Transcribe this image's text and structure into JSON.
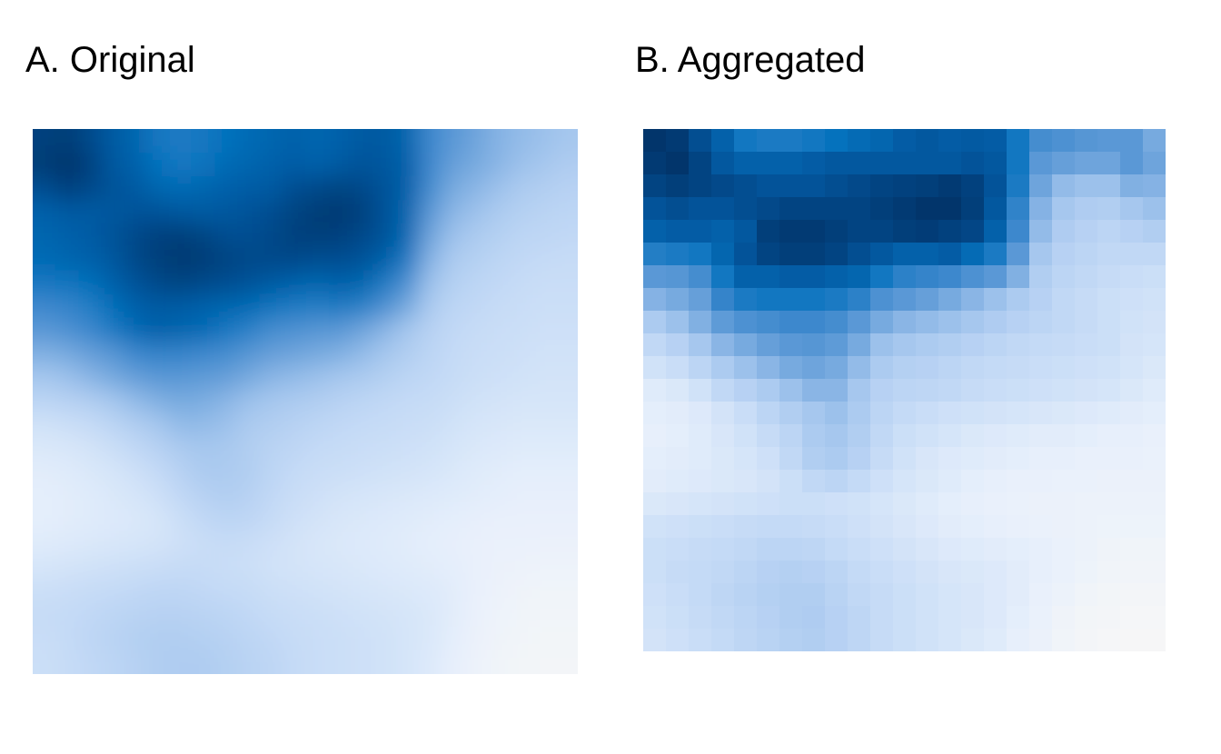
{
  "chart_data": [
    {
      "type": "heatmap",
      "title": "A. Original",
      "xlabel": "",
      "ylabel": "",
      "legend": "none",
      "grid": false,
      "smooth": true,
      "value_range": [
        0,
        1
      ],
      "rows": 23,
      "cols": 24,
      "values": [
        [
          0.95,
          0.97,
          0.92,
          0.85,
          0.8,
          0.72,
          0.7,
          0.72,
          0.75,
          0.78,
          0.8,
          0.82,
          0.8,
          0.82,
          0.85,
          0.85,
          0.8,
          0.62,
          0.55,
          0.5,
          0.45,
          0.42,
          0.4,
          0.38
        ],
        [
          0.97,
          1.0,
          0.95,
          0.86,
          0.82,
          0.75,
          0.72,
          0.74,
          0.78,
          0.8,
          0.82,
          0.84,
          0.82,
          0.85,
          0.88,
          0.86,
          0.82,
          0.62,
          0.52,
          0.48,
          0.44,
          0.4,
          0.38,
          0.35
        ],
        [
          0.9,
          0.95,
          0.92,
          0.88,
          0.85,
          0.8,
          0.78,
          0.8,
          0.82,
          0.84,
          0.85,
          0.9,
          0.92,
          0.94,
          0.92,
          0.88,
          0.82,
          0.6,
          0.48,
          0.44,
          0.4,
          0.36,
          0.34,
          0.32
        ],
        [
          0.82,
          0.85,
          0.85,
          0.86,
          0.88,
          0.88,
          0.86,
          0.85,
          0.86,
          0.88,
          0.9,
          0.94,
          0.97,
          0.98,
          0.95,
          0.88,
          0.8,
          0.55,
          0.44,
          0.4,
          0.36,
          0.33,
          0.31,
          0.3
        ],
        [
          0.8,
          0.82,
          0.84,
          0.88,
          0.92,
          0.95,
          0.96,
          0.94,
          0.9,
          0.9,
          0.92,
          0.95,
          0.96,
          0.95,
          0.92,
          0.88,
          0.78,
          0.5,
          0.4,
          0.36,
          0.33,
          0.3,
          0.29,
          0.28
        ],
        [
          0.78,
          0.8,
          0.82,
          0.86,
          0.92,
          0.96,
          0.98,
          0.97,
          0.94,
          0.92,
          0.92,
          0.92,
          0.9,
          0.9,
          0.88,
          0.82,
          0.7,
          0.45,
          0.36,
          0.33,
          0.3,
          0.28,
          0.27,
          0.26
        ],
        [
          0.72,
          0.74,
          0.76,
          0.82,
          0.88,
          0.92,
          0.94,
          0.92,
          0.9,
          0.88,
          0.85,
          0.82,
          0.8,
          0.82,
          0.8,
          0.7,
          0.58,
          0.4,
          0.33,
          0.3,
          0.28,
          0.26,
          0.25,
          0.25
        ],
        [
          0.62,
          0.64,
          0.68,
          0.76,
          0.82,
          0.85,
          0.84,
          0.82,
          0.8,
          0.78,
          0.74,
          0.7,
          0.68,
          0.7,
          0.66,
          0.58,
          0.48,
          0.36,
          0.3,
          0.28,
          0.26,
          0.25,
          0.24,
          0.24
        ],
        [
          0.55,
          0.58,
          0.62,
          0.7,
          0.78,
          0.82,
          0.8,
          0.78,
          0.72,
          0.66,
          0.6,
          0.58,
          0.56,
          0.55,
          0.5,
          0.44,
          0.38,
          0.32,
          0.28,
          0.26,
          0.25,
          0.24,
          0.23,
          0.23
        ],
        [
          0.46,
          0.48,
          0.52,
          0.56,
          0.62,
          0.65,
          0.64,
          0.62,
          0.6,
          0.56,
          0.52,
          0.5,
          0.48,
          0.46,
          0.42,
          0.38,
          0.34,
          0.3,
          0.27,
          0.25,
          0.24,
          0.23,
          0.22,
          0.22
        ],
        [
          0.38,
          0.4,
          0.44,
          0.48,
          0.52,
          0.55,
          0.55,
          0.54,
          0.52,
          0.48,
          0.44,
          0.42,
          0.4,
          0.38,
          0.36,
          0.33,
          0.3,
          0.28,
          0.26,
          0.24,
          0.23,
          0.22,
          0.21,
          0.21
        ],
        [
          0.3,
          0.32,
          0.34,
          0.38,
          0.42,
          0.46,
          0.48,
          0.47,
          0.44,
          0.4,
          0.38,
          0.36,
          0.34,
          0.32,
          0.3,
          0.28,
          0.27,
          0.26,
          0.24,
          0.22,
          0.21,
          0.2,
          0.2,
          0.2
        ],
        [
          0.22,
          0.24,
          0.26,
          0.3,
          0.34,
          0.38,
          0.42,
          0.42,
          0.4,
          0.36,
          0.34,
          0.32,
          0.3,
          0.28,
          0.27,
          0.26,
          0.25,
          0.24,
          0.22,
          0.2,
          0.19,
          0.18,
          0.18,
          0.18
        ],
        [
          0.18,
          0.19,
          0.21,
          0.24,
          0.28,
          0.32,
          0.36,
          0.38,
          0.37,
          0.34,
          0.31,
          0.29,
          0.27,
          0.26,
          0.25,
          0.24,
          0.23,
          0.22,
          0.2,
          0.18,
          0.17,
          0.16,
          0.16,
          0.16
        ],
        [
          0.15,
          0.16,
          0.18,
          0.2,
          0.23,
          0.27,
          0.32,
          0.36,
          0.36,
          0.34,
          0.3,
          0.27,
          0.25,
          0.24,
          0.23,
          0.22,
          0.21,
          0.2,
          0.18,
          0.16,
          0.15,
          0.14,
          0.14,
          0.14
        ],
        [
          0.14,
          0.15,
          0.16,
          0.18,
          0.2,
          0.23,
          0.28,
          0.32,
          0.34,
          0.32,
          0.28,
          0.25,
          0.23,
          0.21,
          0.2,
          0.19,
          0.18,
          0.17,
          0.16,
          0.15,
          0.14,
          0.13,
          0.13,
          0.13
        ],
        [
          0.14,
          0.15,
          0.16,
          0.17,
          0.18,
          0.2,
          0.24,
          0.28,
          0.3,
          0.29,
          0.26,
          0.23,
          0.21,
          0.19,
          0.18,
          0.17,
          0.16,
          0.15,
          0.14,
          0.13,
          0.12,
          0.12,
          0.12,
          0.12
        ],
        [
          0.16,
          0.17,
          0.18,
          0.19,
          0.2,
          0.21,
          0.23,
          0.25,
          0.26,
          0.25,
          0.23,
          0.21,
          0.19,
          0.18,
          0.17,
          0.16,
          0.15,
          0.14,
          0.13,
          0.12,
          0.11,
          0.11,
          0.1,
          0.1
        ],
        [
          0.2,
          0.21,
          0.22,
          0.23,
          0.24,
          0.25,
          0.26,
          0.26,
          0.25,
          0.24,
          0.22,
          0.21,
          0.2,
          0.19,
          0.18,
          0.17,
          0.16,
          0.15,
          0.14,
          0.12,
          0.1,
          0.09,
          0.08,
          0.08
        ],
        [
          0.24,
          0.25,
          0.26,
          0.27,
          0.28,
          0.29,
          0.29,
          0.28,
          0.27,
          0.26,
          0.24,
          0.23,
          0.22,
          0.21,
          0.2,
          0.19,
          0.18,
          0.17,
          0.15,
          0.12,
          0.09,
          0.07,
          0.06,
          0.06
        ],
        [
          0.26,
          0.27,
          0.28,
          0.3,
          0.31,
          0.32,
          0.32,
          0.31,
          0.3,
          0.28,
          0.26,
          0.25,
          0.24,
          0.23,
          0.22,
          0.21,
          0.2,
          0.18,
          0.15,
          0.11,
          0.08,
          0.06,
          0.05,
          0.05
        ],
        [
          0.25,
          0.27,
          0.29,
          0.31,
          0.33,
          0.34,
          0.34,
          0.33,
          0.32,
          0.3,
          0.28,
          0.26,
          0.25,
          0.24,
          0.23,
          0.22,
          0.2,
          0.18,
          0.14,
          0.1,
          0.07,
          0.05,
          0.04,
          0.04
        ],
        [
          0.24,
          0.26,
          0.28,
          0.3,
          0.32,
          0.34,
          0.35,
          0.35,
          0.33,
          0.31,
          0.29,
          0.27,
          0.25,
          0.24,
          0.23,
          0.22,
          0.2,
          0.17,
          0.13,
          0.09,
          0.06,
          0.04,
          0.03,
          0.03
        ]
      ]
    },
    {
      "type": "heatmap",
      "title": "B. Aggregated",
      "xlabel": "",
      "ylabel": "",
      "legend": "none",
      "grid": false,
      "smooth": false,
      "value_range": [
        0,
        1
      ],
      "rows": 23,
      "cols": 23,
      "values": [
        [
          1.0,
          0.98,
          0.9,
          0.82,
          0.72,
          0.7,
          0.7,
          0.72,
          0.75,
          0.78,
          0.8,
          0.84,
          0.86,
          0.84,
          0.85,
          0.84,
          0.72,
          0.6,
          0.58,
          0.56,
          0.55,
          0.55,
          0.48
        ],
        [
          0.98,
          1.0,
          0.94,
          0.86,
          0.82,
          0.82,
          0.82,
          0.84,
          0.86,
          0.86,
          0.86,
          0.86,
          0.86,
          0.86,
          0.88,
          0.86,
          0.72,
          0.55,
          0.52,
          0.5,
          0.5,
          0.55,
          0.5
        ],
        [
          0.94,
          0.96,
          0.94,
          0.92,
          0.9,
          0.88,
          0.88,
          0.88,
          0.9,
          0.92,
          0.94,
          0.95,
          0.96,
          0.98,
          0.95,
          0.88,
          0.7,
          0.5,
          0.42,
          0.4,
          0.4,
          0.46,
          0.45
        ],
        [
          0.88,
          0.9,
          0.88,
          0.88,
          0.9,
          0.92,
          0.94,
          0.94,
          0.94,
          0.94,
          0.96,
          0.98,
          1.0,
          1.0,
          0.96,
          0.86,
          0.65,
          0.45,
          0.38,
          0.35,
          0.34,
          0.38,
          0.4
        ],
        [
          0.82,
          0.84,
          0.84,
          0.82,
          0.86,
          0.96,
          0.98,
          0.98,
          0.96,
          0.94,
          0.94,
          0.96,
          0.97,
          0.95,
          0.93,
          0.82,
          0.62,
          0.42,
          0.35,
          0.32,
          0.3,
          0.32,
          0.34
        ],
        [
          0.68,
          0.7,
          0.72,
          0.8,
          0.88,
          0.94,
          0.96,
          0.96,
          0.94,
          0.9,
          0.86,
          0.82,
          0.82,
          0.84,
          0.78,
          0.7,
          0.55,
          0.38,
          0.32,
          0.3,
          0.28,
          0.28,
          0.28
        ],
        [
          0.55,
          0.56,
          0.6,
          0.72,
          0.82,
          0.82,
          0.84,
          0.84,
          0.82,
          0.8,
          0.72,
          0.66,
          0.64,
          0.62,
          0.58,
          0.55,
          0.46,
          0.34,
          0.3,
          0.28,
          0.26,
          0.25,
          0.24
        ],
        [
          0.45,
          0.48,
          0.52,
          0.64,
          0.7,
          0.72,
          0.72,
          0.72,
          0.7,
          0.66,
          0.58,
          0.55,
          0.52,
          0.48,
          0.44,
          0.4,
          0.36,
          0.32,
          0.28,
          0.26,
          0.24,
          0.23,
          0.22
        ],
        [
          0.36,
          0.4,
          0.46,
          0.54,
          0.58,
          0.6,
          0.62,
          0.62,
          0.6,
          0.55,
          0.48,
          0.44,
          0.42,
          0.4,
          0.38,
          0.35,
          0.32,
          0.3,
          0.28,
          0.26,
          0.24,
          0.22,
          0.21
        ],
        [
          0.28,
          0.32,
          0.38,
          0.44,
          0.48,
          0.52,
          0.55,
          0.56,
          0.54,
          0.48,
          0.4,
          0.38,
          0.36,
          0.34,
          0.32,
          0.3,
          0.28,
          0.27,
          0.26,
          0.25,
          0.24,
          0.21,
          0.2
        ],
        [
          0.22,
          0.25,
          0.3,
          0.36,
          0.4,
          0.44,
          0.48,
          0.5,
          0.48,
          0.42,
          0.36,
          0.33,
          0.32,
          0.3,
          0.28,
          0.27,
          0.26,
          0.25,
          0.24,
          0.23,
          0.22,
          0.2,
          0.18
        ],
        [
          0.16,
          0.18,
          0.22,
          0.28,
          0.32,
          0.36,
          0.4,
          0.44,
          0.44,
          0.38,
          0.32,
          0.3,
          0.29,
          0.28,
          0.26,
          0.25,
          0.24,
          0.23,
          0.22,
          0.21,
          0.2,
          0.18,
          0.16
        ],
        [
          0.14,
          0.15,
          0.17,
          0.21,
          0.25,
          0.3,
          0.34,
          0.38,
          0.4,
          0.36,
          0.3,
          0.27,
          0.25,
          0.23,
          0.22,
          0.21,
          0.2,
          0.19,
          0.18,
          0.17,
          0.16,
          0.15,
          0.14
        ],
        [
          0.13,
          0.14,
          0.16,
          0.19,
          0.22,
          0.26,
          0.3,
          0.36,
          0.38,
          0.34,
          0.28,
          0.24,
          0.22,
          0.2,
          0.18,
          0.17,
          0.16,
          0.15,
          0.15,
          0.14,
          0.13,
          0.13,
          0.12
        ],
        [
          0.14,
          0.15,
          0.16,
          0.18,
          0.2,
          0.23,
          0.28,
          0.34,
          0.36,
          0.32,
          0.26,
          0.22,
          0.19,
          0.17,
          0.16,
          0.15,
          0.14,
          0.13,
          0.13,
          0.12,
          0.12,
          0.12,
          0.11
        ],
        [
          0.15,
          0.16,
          0.17,
          0.18,
          0.19,
          0.21,
          0.24,
          0.28,
          0.3,
          0.27,
          0.23,
          0.2,
          0.18,
          0.16,
          0.14,
          0.13,
          0.12,
          0.12,
          0.11,
          0.11,
          0.1,
          0.1,
          0.1
        ],
        [
          0.18,
          0.19,
          0.2,
          0.21,
          0.22,
          0.23,
          0.24,
          0.24,
          0.23,
          0.22,
          0.2,
          0.18,
          0.16,
          0.14,
          0.13,
          0.12,
          0.11,
          0.1,
          0.1,
          0.09,
          0.09,
          0.09,
          0.09
        ],
        [
          0.22,
          0.23,
          0.24,
          0.25,
          0.26,
          0.27,
          0.27,
          0.26,
          0.25,
          0.23,
          0.21,
          0.19,
          0.17,
          0.15,
          0.14,
          0.13,
          0.12,
          0.11,
          0.1,
          0.09,
          0.08,
          0.08,
          0.08
        ],
        [
          0.24,
          0.25,
          0.26,
          0.27,
          0.28,
          0.3,
          0.3,
          0.29,
          0.27,
          0.25,
          0.23,
          0.21,
          0.19,
          0.17,
          0.16,
          0.15,
          0.14,
          0.13,
          0.11,
          0.09,
          0.07,
          0.06,
          0.06
        ],
        [
          0.24,
          0.26,
          0.27,
          0.28,
          0.3,
          0.32,
          0.33,
          0.32,
          0.3,
          0.27,
          0.25,
          0.23,
          0.21,
          0.19,
          0.18,
          0.17,
          0.15,
          0.13,
          0.11,
          0.08,
          0.06,
          0.05,
          0.05
        ],
        [
          0.23,
          0.25,
          0.27,
          0.29,
          0.31,
          0.33,
          0.34,
          0.34,
          0.31,
          0.28,
          0.26,
          0.24,
          0.22,
          0.2,
          0.19,
          0.17,
          0.15,
          0.12,
          0.09,
          0.06,
          0.04,
          0.03,
          0.03
        ],
        [
          0.22,
          0.24,
          0.26,
          0.28,
          0.3,
          0.32,
          0.34,
          0.35,
          0.32,
          0.29,
          0.26,
          0.24,
          0.22,
          0.2,
          0.19,
          0.17,
          0.14,
          0.11,
          0.07,
          0.04,
          0.03,
          0.02,
          0.02
        ],
        [
          0.21,
          0.23,
          0.25,
          0.27,
          0.29,
          0.31,
          0.33,
          0.34,
          0.32,
          0.29,
          0.26,
          0.24,
          0.22,
          0.2,
          0.18,
          0.16,
          0.13,
          0.1,
          0.06,
          0.03,
          0.02,
          0.01,
          0.01
        ]
      ]
    }
  ],
  "colors": {
    "scale": [
      "#f7f7f7",
      "#deebf7",
      "#c6dbef",
      "#9ecae1",
      "#6baed6",
      "#4292c6",
      "#2171b5",
      "#08519c",
      "#08306b"
    ],
    "scale_stops": [
      "#f7f7f7",
      "#e8f0fb",
      "#c9ddf7",
      "#a8c8ef",
      "#6ea4dc",
      "#3b87cc",
      "#0572bd",
      "#03549b",
      "#02356b"
    ]
  }
}
